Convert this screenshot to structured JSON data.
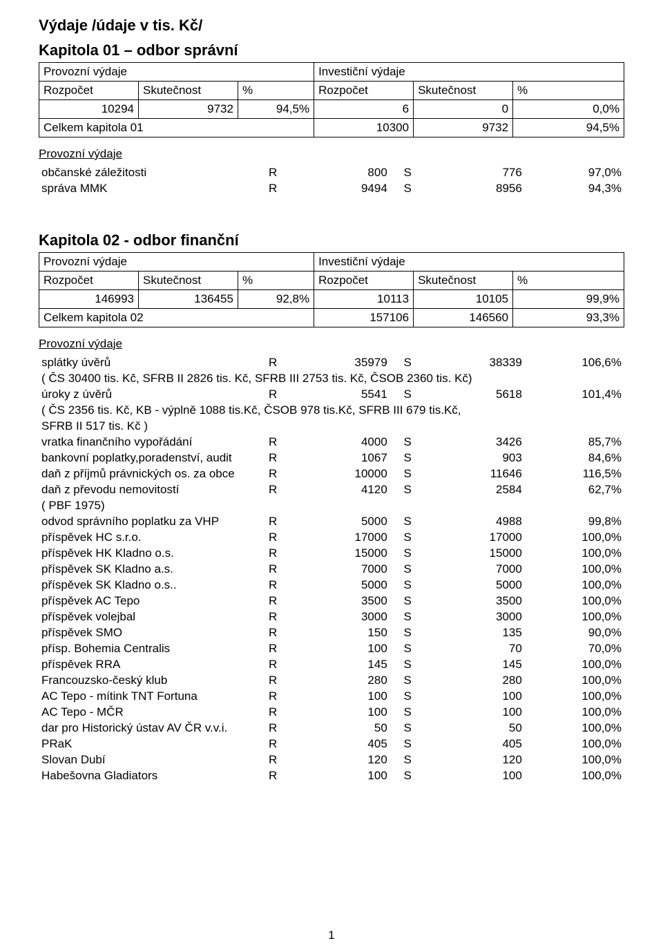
{
  "title": "Výdaje /údaje v tis. Kč/",
  "page_number": "1",
  "chapters": [
    {
      "heading": "Kapitola 01 – odbor správní",
      "table": {
        "h_provozni": "Provozní výdaje",
        "h_investicni": "Investiční výdaje",
        "h_rozpocet": "Rozpočet",
        "h_skutecnost": "Skutečnost",
        "h_pct": "%",
        "rows": [
          {
            "c1": "10294",
            "c2": "9732",
            "c3": "94,5%",
            "c4": "6",
            "c5": "0",
            "c6": "0,0%"
          }
        ],
        "total_label": "Celkem kapitola 01",
        "total_r": "10300",
        "total_s": "9732",
        "total_pct": "94,5%"
      },
      "section_label": "Provozní výdaje",
      "items": [
        {
          "label": "občanské záležitosti",
          "R": "800",
          "S": "776",
          "pct": "97,0%"
        },
        {
          "label": "správa MMK",
          "R": "9494",
          "S": "8956",
          "pct": "94,3%"
        }
      ],
      "notes": []
    },
    {
      "heading": "Kapitola 02 -  odbor finanční",
      "table": {
        "h_provozni": "Provozní výdaje",
        "h_investicni": "Investiční výdaje",
        "h_rozpocet": "Rozpočet",
        "h_skutecnost": "Skutečnost",
        "h_pct": "%",
        "rows": [
          {
            "c1": "146993",
            "c2": "136455",
            "c3": "92,8%",
            "c4": "10113",
            "c5": "10105",
            "c6": "99,9%"
          }
        ],
        "total_label": "Celkem kapitola 02",
        "total_r": "157106",
        "total_s": "146560",
        "total_pct": "93,3%"
      },
      "section_label": "Provozní výdaje",
      "items": [
        {
          "label": "splátky úvěrů",
          "R": "35979",
          "S": "38339",
          "pct": "106,6%"
        },
        {
          "note": "( ČS 30400 tis. Kč, SFRB II 2826 tis. Kč, SFRB III 2753 tis. Kč, ČSOB 2360 tis. Kč)"
        },
        {
          "label": "úroky z úvěrů",
          "R": "5541",
          "S": "5618",
          "pct": "101,4%"
        },
        {
          "note": "( ČS 2356 tis. Kč, KB - výplně 1088 tis.Kč, ČSOB 978 tis.Kč, SFRB III 679 tis.Kč,"
        },
        {
          "note": "SFRB II 517 tis. Kč )"
        },
        {
          "label": "vratka finančního vypořádání",
          "R": "4000",
          "S": "3426",
          "pct": "85,7%"
        },
        {
          "label": "bankovní poplatky,poradenství, audit",
          "R": "1067",
          "S": "903",
          "pct": "84,6%"
        },
        {
          "label": "daň z příjmů právnických os. za obce",
          "R": "10000",
          "S": "11646",
          "pct": "116,5%"
        },
        {
          "label": "daň z převodu nemovitostí",
          "R": "4120",
          "S": "2584",
          "pct": "62,7%"
        },
        {
          "note": "( PBF 1975)"
        },
        {
          "label": "odvod správního poplatku za VHP",
          "R": "5000",
          "S": "4988",
          "pct": "99,8%"
        },
        {
          "label": "příspěvek HC s.r.o.",
          "R": "17000",
          "S": "17000",
          "pct": "100,0%"
        },
        {
          "label": "příspěvek HK Kladno o.s.",
          "R": "15000",
          "S": "15000",
          "pct": "100,0%"
        },
        {
          "label": "příspěvek SK Kladno a.s.",
          "R": "7000",
          "S": "7000",
          "pct": "100,0%"
        },
        {
          "label": "příspěvek SK Kladno o.s..",
          "R": "5000",
          "S": "5000",
          "pct": "100,0%"
        },
        {
          "label": "příspěvek AC Tepo",
          "R": "3500",
          "S": "3500",
          "pct": "100,0%"
        },
        {
          "label": "příspěvek volejbal",
          "R": "3000",
          "S": "3000",
          "pct": "100,0%"
        },
        {
          "label": "příspěvek SMO",
          "R": "150",
          "S": "135",
          "pct": "90,0%"
        },
        {
          "label": "přísp. Bohemia Centralis",
          "R": "100",
          "S": "70",
          "pct": "70,0%"
        },
        {
          "label": "příspěvek RRA",
          "R": "145",
          "S": "145",
          "pct": "100,0%"
        },
        {
          "label": "Francouzsko-český klub",
          "R": "280",
          "S": "280",
          "pct": "100,0%"
        },
        {
          "label": "AC Tepo - mítink TNT Fortuna",
          "R": "100",
          "S": "100",
          "pct": "100,0%"
        },
        {
          "label": "AC Tepo - MČR",
          "R": "100",
          "S": "100",
          "pct": "100,0%"
        },
        {
          "label": "dar pro Historický ústav AV ČR v.v.i.",
          "R": "50",
          "S": "50",
          "pct": "100,0%"
        },
        {
          "label": "PRaK",
          "R": "405",
          "S": "405",
          "pct": "100,0%"
        },
        {
          "label": "Slovan Dubí",
          "R": "120",
          "S": "120",
          "pct": "100,0%"
        },
        {
          "label": "Habešovna Gladiators",
          "R": "100",
          "S": "100",
          "pct": "100,0%"
        }
      ]
    }
  ],
  "labels": {
    "R": "R",
    "S": "S"
  }
}
